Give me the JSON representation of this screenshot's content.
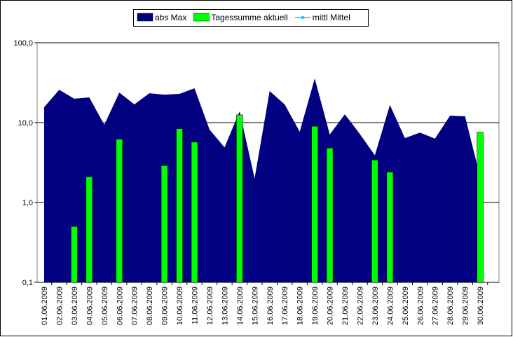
{
  "chart_data": {
    "type": "combo",
    "categories": [
      "01.06.2009",
      "02.06.2009",
      "03.06.2009",
      "04.06.2009",
      "05.06.2009",
      "06.06.2009",
      "07.06.2009",
      "08.06.2009",
      "09.06.2009",
      "10.06.2009",
      "11.06.2009",
      "12.06.2009",
      "13.06.2009",
      "14.06.2009",
      "15.06.2009",
      "16.06.2009",
      "17.06.2009",
      "18.06.2009",
      "19.06.2009",
      "20.06.2009",
      "21.06.2009",
      "22.06.2009",
      "23.06.2009",
      "24.06.2009",
      "25.06.2009",
      "26.06.2009",
      "27.06.2009",
      "28.06.2009",
      "29.06.2009",
      "30.06.2009"
    ],
    "series": [
      {
        "name": "abs Max",
        "kind": "area",
        "color": "#000080",
        "values": [
          15.6,
          25.8,
          19.9,
          20.7,
          9.4,
          23.8,
          16.9,
          23.3,
          22.4,
          22.9,
          26.9,
          8.2,
          4.9,
          13.8,
          2.0,
          24.8,
          16.9,
          7.7,
          35.7,
          7.1,
          12.7,
          7.2,
          3.9,
          16.6,
          6.4,
          7.5,
          6.3,
          12.2,
          12.0,
          2.1
        ]
      },
      {
        "name": "Tagessumme aktuell",
        "kind": "bar",
        "color": "#00ff00",
        "values": [
          null,
          null,
          0.5,
          2.1,
          null,
          6.2,
          null,
          null,
          2.9,
          8.4,
          5.7,
          null,
          null,
          12.5,
          null,
          null,
          null,
          null,
          9.0,
          4.8,
          null,
          null,
          3.4,
          2.4,
          null,
          null,
          null,
          null,
          null,
          7.6
        ]
      },
      {
        "name": "mittl Mittel",
        "kind": "line",
        "color": "#00ccff",
        "values": [
          null,
          null,
          null,
          null,
          null,
          null,
          null,
          null,
          null,
          null,
          null,
          null,
          null,
          null,
          null,
          null,
          null,
          null,
          null,
          null,
          null,
          null,
          null,
          null,
          null,
          null,
          null,
          null,
          null,
          null
        ]
      }
    ],
    "ylim": [
      0.1,
      100
    ],
    "log_scale": true,
    "yticks": [
      {
        "value": 0.1,
        "label": "0,1"
      },
      {
        "value": 1,
        "label": "1,0"
      },
      {
        "value": 10,
        "label": "10,0"
      },
      {
        "value": 100,
        "label": "100,0"
      }
    ],
    "grid": true,
    "legend": "top"
  }
}
